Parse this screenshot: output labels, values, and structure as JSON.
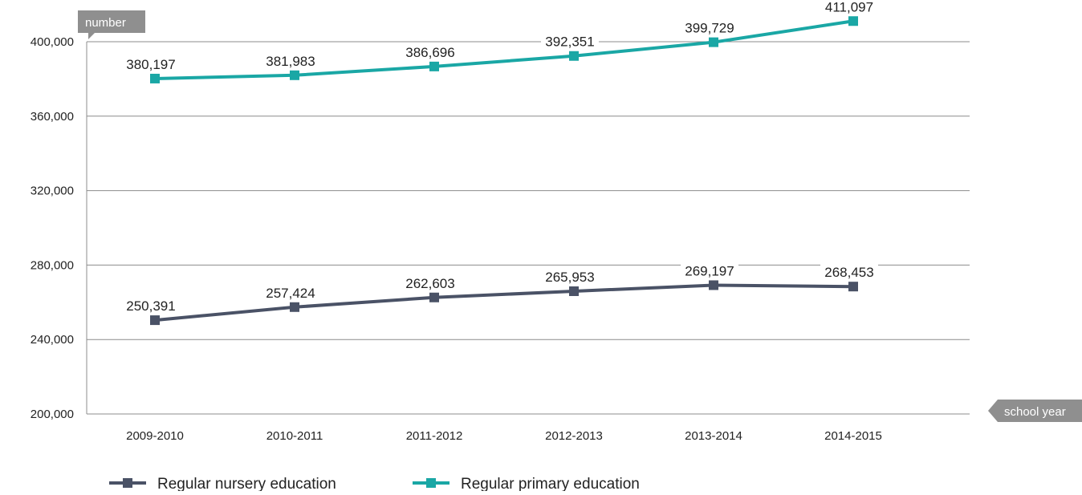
{
  "chart_data": {
    "type": "line",
    "categories": [
      "2009-2010",
      "2010-2011",
      "2011-2012",
      "2012-2013",
      "2013-2014",
      "2014-2015"
    ],
    "ylabel": "number",
    "xlabel": "school year",
    "ylim": [
      200000,
      400000
    ],
    "yticks": [
      400000,
      360000,
      320000,
      280000,
      240000,
      200000
    ],
    "ytick_labels": [
      "400,000",
      "360,000",
      "320,000",
      "280,000",
      "240,000",
      "200,000"
    ],
    "grid": true,
    "legend_position": "bottom-left",
    "series": [
      {
        "name": "Regular nursery education",
        "color": "#4a5266",
        "values": [
          250391,
          257424,
          262603,
          265953,
          269197,
          268453
        ],
        "labels": [
          "250,391",
          "257,424",
          "262,603",
          "265,953",
          "269,197",
          "268,453"
        ]
      },
      {
        "name": "Regular primary education",
        "color": "#1aa7a5",
        "values": [
          380197,
          381983,
          386696,
          392351,
          399729,
          411097
        ],
        "labels": [
          "380,197",
          "381,983",
          "386,696",
          "392,351",
          "399,729",
          "411,097"
        ]
      }
    ]
  }
}
